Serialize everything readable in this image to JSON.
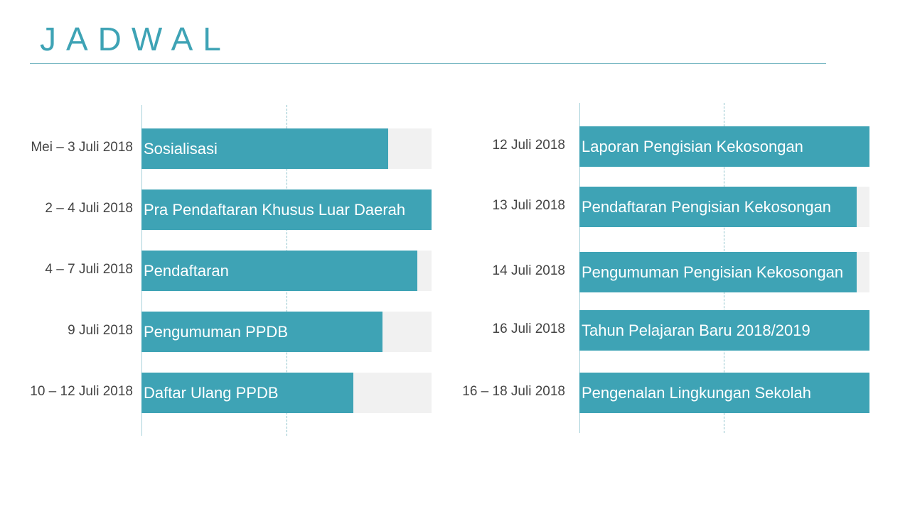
{
  "title": "JADWAL",
  "colors": {
    "accent": "#3ea3b5",
    "track": "#f1f1f1",
    "text": "#444444"
  },
  "chart_data": [
    {
      "type": "bar",
      "orientation": "horizontal",
      "categories": [
        "Mei – 3 Juli 2018",
        "2 – 4 Juli 2018",
        "4  – 7 Juli 2018",
        "9  Juli 2018",
        "10 – 12 Juli 2018"
      ],
      "labels": [
        "Sosialisasi",
        "Pra Pendaftaran Khusus Luar Daerah",
        "Pendaftaran",
        "Pengumuman PPDB",
        "Daftar Ulang PPDB"
      ],
      "values": [
        0.85,
        1.0,
        0.95,
        0.83,
        0.73
      ],
      "xlim": [
        0,
        1
      ]
    },
    {
      "type": "bar",
      "orientation": "horizontal",
      "categories": [
        "12 Juli 2018",
        "13 Juli 2018",
        "14 Juli 2018",
        "16 Juli 2018",
        "16 – 18 Juli 2018"
      ],
      "labels": [
        "Laporan Pengisian Kekosongan",
        "Pendaftaran Pengisian Kekosongan",
        "Pengumuman Pengisian Kekosongan",
        "Tahun Pelajaran Baru 2018/2019",
        "Pengenalan Lingkungan Sekolah"
      ],
      "values": [
        1.0,
        0.955,
        0.955,
        1.0,
        1.0
      ],
      "xlim": [
        0,
        1
      ]
    }
  ]
}
